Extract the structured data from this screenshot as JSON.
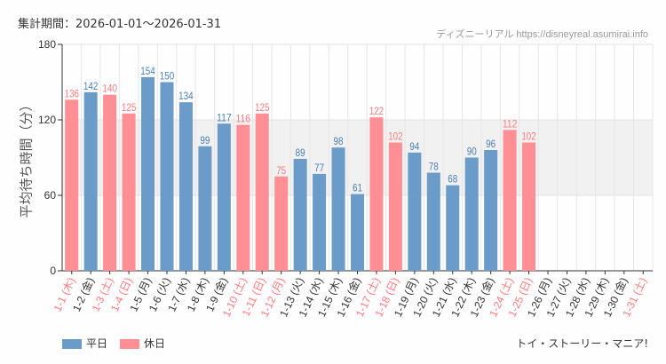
{
  "header": {
    "period": "集計期間：2026-01-01～2026-01-31",
    "credit": "ディズニーリアル https://disneyreal.asumirai.info",
    "footer": "トイ・ストーリー・マニア!"
  },
  "colors": {
    "weekday": "#6a9bc9",
    "holiday": "#ff8f94",
    "holiday_text": "#ff7a80",
    "band": "#f0f1f0"
  },
  "chart_data": {
    "type": "bar",
    "ylabel": "平均待ち時間（分）",
    "ylim": [
      0,
      180
    ],
    "yticks": [
      0,
      60,
      120,
      180
    ],
    "shaded_band": [
      60,
      120
    ],
    "legend": [
      {
        "name": "平日",
        "key": "weekday"
      },
      {
        "name": "休日",
        "key": "holiday"
      }
    ],
    "legend_position": "bottom-left",
    "categories": [
      "1-1 (木)",
      "1-2 (金)",
      "1-3 (土)",
      "1-4 (日)",
      "1-5 (月)",
      "1-6 (火)",
      "1-7 (水)",
      "1-8 (木)",
      "1-9 (金)",
      "1-10 (土)",
      "1-11 (日)",
      "1-12 (月)",
      "1-13 (火)",
      "1-14 (水)",
      "1-15 (木)",
      "1-16 (金)",
      "1-17 (土)",
      "1-18 (日)",
      "1-19 (月)",
      "1-20 (火)",
      "1-21 (水)",
      "1-22 (木)",
      "1-23 (金)",
      "1-24 (土)",
      "1-25 (日)",
      "1-26 (月)",
      "1-27 (火)",
      "1-28 (水)",
      "1-29 (木)",
      "1-30 (金)",
      "1-31 (土)"
    ],
    "holiday": [
      true,
      false,
      true,
      true,
      false,
      false,
      false,
      false,
      false,
      true,
      true,
      true,
      false,
      false,
      false,
      false,
      true,
      true,
      false,
      false,
      false,
      false,
      false,
      true,
      true,
      false,
      false,
      false,
      false,
      false,
      true
    ],
    "values": [
      136,
      142,
      140,
      125,
      154,
      150,
      134,
      99,
      117,
      116,
      125,
      75,
      89,
      77,
      98,
      61,
      122,
      102,
      94,
      78,
      68,
      90,
      96,
      112,
      102,
      null,
      null,
      null,
      null,
      null,
      null
    ]
  }
}
